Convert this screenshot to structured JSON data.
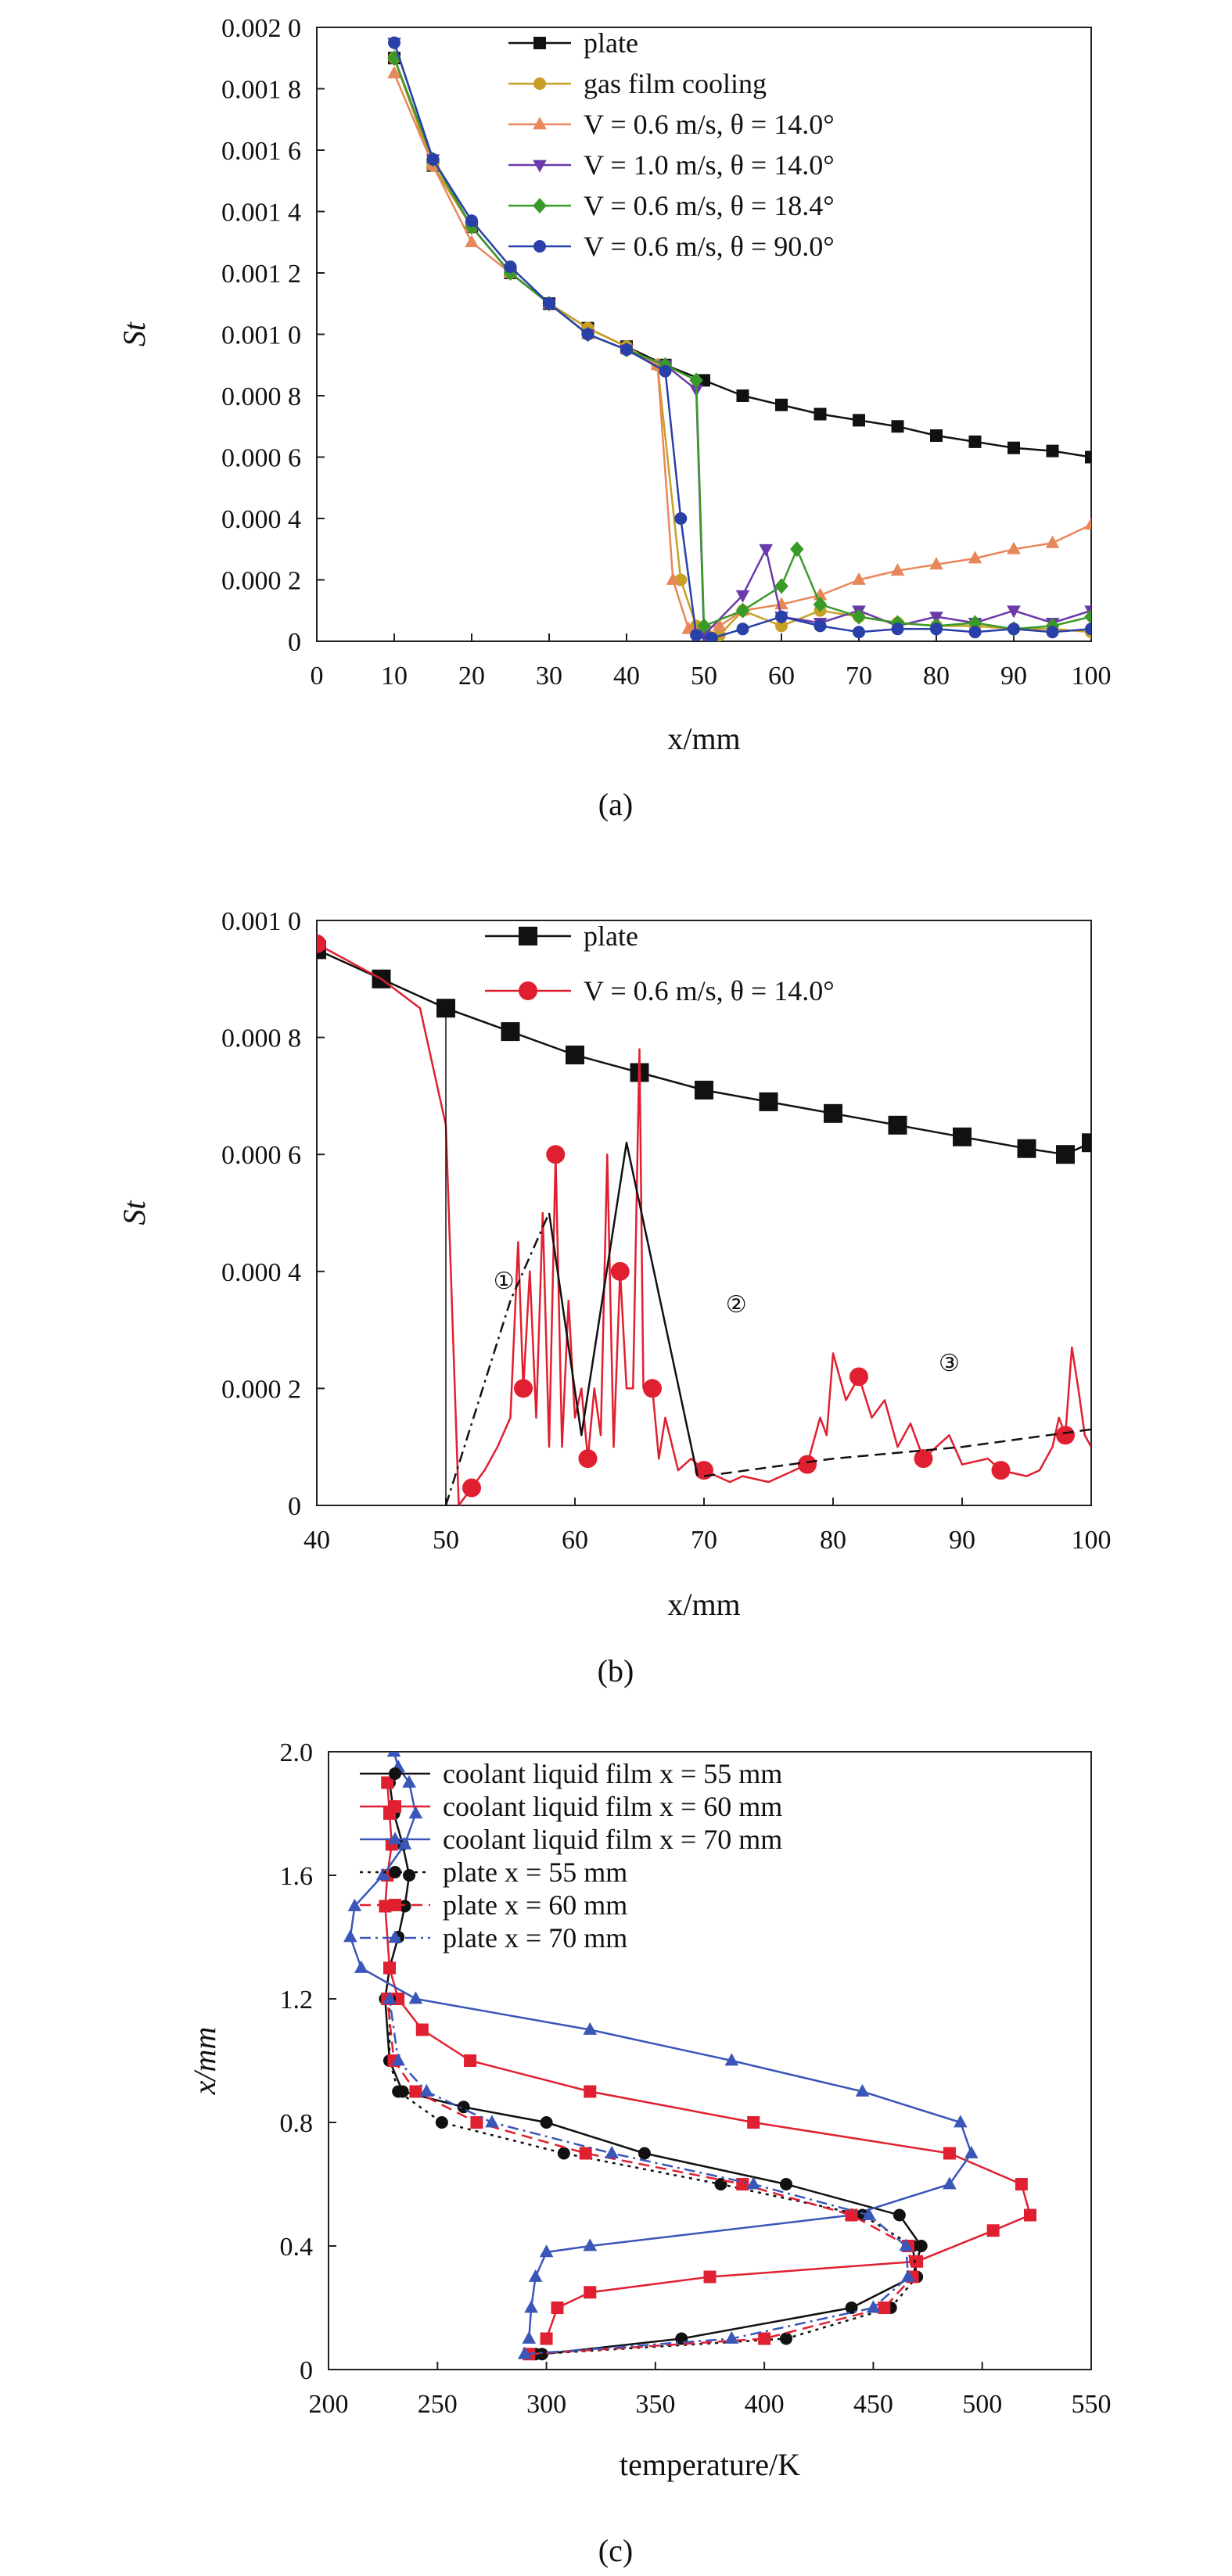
{
  "figure": {
    "panels": [
      {
        "id": "a",
        "label": "(a)"
      },
      {
        "id": "b",
        "label": "(b)"
      },
      {
        "id": "c",
        "label": "(c)"
      }
    ]
  },
  "colors": {
    "plate": "#111111",
    "gas_film": "#c8a028",
    "s_06_14": "#e8875a",
    "s_10_14": "#6a3aa8",
    "s_06_184": "#3a9a28",
    "s_06_90": "#2840a8",
    "red": "#e02030",
    "blue": "#3a56b8"
  },
  "chart_data": [
    {
      "panel": "a",
      "type": "line",
      "xlabel": "x/mm",
      "ylabel": "St",
      "xlim": [
        0,
        100
      ],
      "ylim": [
        0,
        0.002
      ],
      "xticks": [
        0,
        10,
        20,
        30,
        40,
        50,
        60,
        70,
        80,
        90,
        100
      ],
      "xtick_labels": [
        "0",
        "10",
        "20",
        "30",
        "40",
        "50",
        "60",
        "70",
        "80",
        "90",
        "100"
      ],
      "yticks": [
        0,
        0.0002,
        0.0004,
        0.0006,
        0.0008,
        0.001,
        0.0012,
        0.0014,
        0.0016,
        0.0018,
        0.002
      ],
      "ytick_labels": [
        "0",
        "0.000 2",
        "0.000 4",
        "0.000 6",
        "0.000 8",
        "0.001 0",
        "0.001 2",
        "0.001 4",
        "0.001 6",
        "0.001 8",
        "0.002 0"
      ],
      "legend": {
        "position": "top-right"
      },
      "series": [
        {
          "name": "plate",
          "color_key": "plate",
          "marker": "square",
          "x": [
            10,
            15,
            20,
            25,
            30,
            35,
            40,
            45,
            50,
            55,
            60,
            65,
            70,
            75,
            80,
            85,
            90,
            95,
            100
          ],
          "y": [
            0.0019,
            0.00155,
            0.00135,
            0.0012,
            0.0011,
            0.00102,
            0.00096,
            0.0009,
            0.00085,
            0.0008,
            0.00077,
            0.00074,
            0.00072,
            0.0007,
            0.00067,
            0.00065,
            0.00063,
            0.00062,
            0.0006
          ]
        },
        {
          "name": "gas film cooling",
          "color_key": "gas_film",
          "marker": "circle",
          "x": [
            10,
            15,
            20,
            25,
            30,
            35,
            40,
            44,
            47,
            49,
            52,
            55,
            60,
            65,
            70,
            75,
            80,
            85,
            90,
            95,
            100
          ],
          "y": [
            0.0019,
            0.00155,
            0.00135,
            0.0012,
            0.0011,
            0.00102,
            0.00096,
            0.0009,
            0.0002,
            5e-05,
            2e-05,
            0.0001,
            5e-05,
            0.0001,
            8e-05,
            6e-05,
            5e-05,
            5e-05,
            4e-05,
            4e-05,
            3e-05
          ]
        },
        {
          "name": "V = 0.6 m/s, θ = 14.0°",
          "color_key": "s_06_14",
          "marker": "triangle-up",
          "x": [
            10,
            15,
            20,
            25,
            30,
            35,
            40,
            44,
            46,
            48,
            52,
            55,
            60,
            65,
            70,
            75,
            80,
            85,
            90,
            95,
            100
          ],
          "y": [
            0.00185,
            0.00155,
            0.0013,
            0.0012,
            0.0011,
            0.001,
            0.00095,
            0.0009,
            0.0002,
            4e-05,
            5e-05,
            0.0001,
            0.00012,
            0.00015,
            0.0002,
            0.00023,
            0.00025,
            0.00027,
            0.0003,
            0.00032,
            0.00038
          ]
        },
        {
          "name": "V = 1.0 m/s, θ = 14.0°",
          "color_key": "s_10_14",
          "marker": "triangle-down",
          "x": [
            10,
            15,
            20,
            25,
            30,
            35,
            40,
            45,
            49,
            50,
            55,
            58,
            60,
            65,
            70,
            75,
            80,
            85,
            90,
            95,
            100
          ],
          "y": [
            0.00195,
            0.00157,
            0.00135,
            0.0012,
            0.0011,
            0.001,
            0.00095,
            0.0009,
            0.00082,
            2e-05,
            0.00015,
            0.0003,
            8e-05,
            6e-05,
            0.0001,
            5e-05,
            8e-05,
            6e-05,
            0.0001,
            6e-05,
            0.0001
          ]
        },
        {
          "name": "V = 0.6 m/s, θ = 18.4°",
          "color_key": "s_06_184",
          "marker": "diamond",
          "x": [
            10,
            15,
            20,
            25,
            30,
            35,
            40,
            45,
            49,
            50,
            55,
            60,
            62,
            65,
            70,
            75,
            80,
            85,
            90,
            95,
            100
          ],
          "y": [
            0.0019,
            0.00157,
            0.00135,
            0.0012,
            0.0011,
            0.001,
            0.00095,
            0.0009,
            0.00085,
            5e-05,
            0.0001,
            0.00018,
            0.0003,
            0.00012,
            8e-05,
            6e-05,
            5e-05,
            6e-05,
            4e-05,
            5e-05,
            8e-05
          ]
        },
        {
          "name": "V = 0.6 m/s, θ = 90.0°",
          "color_key": "s_06_90",
          "marker": "circle",
          "x": [
            10,
            15,
            20,
            25,
            30,
            35,
            40,
            45,
            47,
            49,
            51,
            55,
            60,
            65,
            70,
            75,
            80,
            85,
            90,
            95,
            100
          ],
          "y": [
            0.00195,
            0.00157,
            0.00137,
            0.00122,
            0.0011,
            0.001,
            0.00095,
            0.00088,
            0.0004,
            2e-05,
            1e-05,
            4e-05,
            8e-05,
            5e-05,
            3e-05,
            4e-05,
            4e-05,
            3e-05,
            4e-05,
            3e-05,
            4e-05
          ]
        }
      ]
    },
    {
      "panel": "b",
      "type": "line",
      "xlabel": "x/mm",
      "ylabel": "St",
      "xlim": [
        40,
        100
      ],
      "ylim": [
        0,
        0.001
      ],
      "xticks": [
        40,
        50,
        60,
        70,
        80,
        90,
        100
      ],
      "xtick_labels": [
        "40",
        "50",
        "60",
        "70",
        "80",
        "90",
        "100"
      ],
      "yticks": [
        0,
        0.0002,
        0.0004,
        0.0006,
        0.0008,
        0.001
      ],
      "ytick_labels": [
        "0",
        "0.000 2",
        "0.000 4",
        "0.000 6",
        "0.000 8",
        "0.001 0"
      ],
      "legend": {
        "position": "top-right"
      },
      "series": [
        {
          "name": "plate",
          "color_key": "plate",
          "marker": "square",
          "x": [
            40,
            45,
            50,
            55,
            60,
            65,
            70,
            75,
            80,
            85,
            90,
            95,
            98,
            100
          ],
          "y": [
            0.00095,
            0.0009,
            0.00085,
            0.00081,
            0.00077,
            0.00074,
            0.00071,
            0.00069,
            0.00067,
            0.00065,
            0.00063,
            0.00061,
            0.0006,
            0.00062
          ]
        },
        {
          "name": "V = 0.6 m/s, θ = 14.0°",
          "color_key": "red",
          "marker": "circle",
          "x": [
            40,
            45,
            48,
            50,
            51,
            52,
            53,
            54,
            55,
            55.6,
            56,
            56.5,
            57,
            57.5,
            58,
            58.5,
            59,
            59.5,
            60,
            60.5,
            61,
            61.5,
            62,
            62.5,
            63,
            63.5,
            64,
            64.5,
            65,
            65.3,
            66,
            66.5,
            67,
            68,
            69,
            70,
            72,
            73,
            75,
            77,
            78,
            79,
            79.5,
            80,
            81,
            82,
            83,
            84,
            85,
            86,
            87,
            88,
            89,
            90,
            92,
            93,
            95,
            96,
            97,
            97.5,
            98,
            98.5,
            99,
            99.5,
            100
          ],
          "y": [
            0.00096,
            0.0009,
            0.00085,
            0.00065,
            0.0,
            3e-05,
            6e-05,
            0.0001,
            0.00015,
            0.00045,
            0.0002,
            0.0004,
            0.00015,
            0.0005,
            0.0001,
            0.0006,
            0.0001,
            0.00035,
            0.00015,
            0.0002,
            8e-05,
            0.0002,
            0.00012,
            0.0006,
            0.0001,
            0.0004,
            0.0002,
            0.0002,
            0.00078,
            0.0002,
            0.0002,
            8e-05,
            0.00015,
            6e-05,
            8e-05,
            6e-05,
            4e-05,
            5e-05,
            4e-05,
            6e-05,
            7e-05,
            0.00015,
            0.00012,
            0.00026,
            0.00018,
            0.00022,
            0.00015,
            0.00018,
            0.0001,
            0.00014,
            8e-05,
            0.0001,
            0.00012,
            7e-05,
            8e-05,
            6e-05,
            5e-05,
            6e-05,
            0.0001,
            0.00015,
            0.00012,
            0.00027,
            0.0002,
            0.00012,
            0.0001
          ]
        },
        {
          "name": "",
          "color_key": "plate",
          "marker": "none",
          "style": "dashdot",
          "x": [
            50,
            55,
            58
          ],
          "y": [
            0.0,
            0.00035,
            0.0005
          ]
        },
        {
          "name": "",
          "color_key": "plate",
          "marker": "none",
          "style": "solid",
          "x": [
            58,
            60.5,
            64,
            69.5
          ],
          "y": [
            0.0005,
            0.00012,
            0.00062,
            5e-05
          ]
        },
        {
          "name": "",
          "color_key": "plate",
          "marker": "none",
          "style": "dashed",
          "x": [
            70,
            80,
            90,
            100
          ],
          "y": [
            5e-05,
            8e-05,
            0.0001,
            0.00013
          ]
        },
        {
          "name": "",
          "color_key": "plate",
          "marker": "none",
          "style": "solid-thin",
          "x": [
            50,
            50
          ],
          "y": [
            0.00085,
            0.0
          ]
        }
      ],
      "annotations": [
        {
          "text": "①",
          "x": 54.5,
          "y": 0.00037
        },
        {
          "text": "②",
          "x": 72.5,
          "y": 0.00033
        },
        {
          "text": "③",
          "x": 89,
          "y": 0.00023
        }
      ]
    },
    {
      "panel": "c",
      "type": "line",
      "xlabel": "temperature/K",
      "ylabel": "x/mm",
      "xlim": [
        200,
        550
      ],
      "ylim": [
        0,
        2.0
      ],
      "xticks": [
        200,
        250,
        300,
        350,
        400,
        450,
        500,
        550
      ],
      "xtick_labels": [
        "200",
        "250",
        "300",
        "350",
        "400",
        "450",
        "500",
        "550"
      ],
      "yticks": [
        0,
        0.4,
        0.8,
        1.2,
        1.6,
        2.0
      ],
      "ytick_labels": [
        "0",
        "0.4",
        "0.8",
        "1.2",
        "1.6",
        "2.0"
      ],
      "legend": {
        "position": "top-right"
      },
      "series": [
        {
          "name": "coolant liquid film x = 55 mm",
          "color_key": "plate",
          "marker": "circle",
          "style": "solid",
          "x": [
            298,
            362,
            440,
            468,
            472,
            462,
            410,
            345,
            300,
            262,
            234,
            228,
            226,
            228,
            232,
            235,
            237,
            234,
            230,
            228
          ],
          "y": [
            0.05,
            0.1,
            0.2,
            0.3,
            0.4,
            0.5,
            0.6,
            0.7,
            0.8,
            0.85,
            0.9,
            1.0,
            1.2,
            1.3,
            1.4,
            1.5,
            1.6,
            1.7,
            1.8,
            1.9
          ]
        },
        {
          "name": "coolant liquid film x = 60 mm",
          "color_key": "red",
          "marker": "square",
          "style": "solid",
          "x": [
            300,
            305,
            320,
            375,
            470,
            505,
            522,
            518,
            485,
            395,
            320,
            265,
            243,
            232,
            228,
            226,
            227,
            229,
            228,
            227
          ],
          "y": [
            0.1,
            0.2,
            0.25,
            0.3,
            0.35,
            0.45,
            0.5,
            0.6,
            0.7,
            0.8,
            0.9,
            1.0,
            1.1,
            1.2,
            1.3,
            1.5,
            1.6,
            1.7,
            1.8,
            1.9
          ]
        },
        {
          "name": "coolant liquid film x = 70 mm",
          "color_key": "blue",
          "marker": "triangle-up",
          "style": "solid",
          "x": [
            292,
            293,
            295,
            300,
            320,
            440,
            485,
            495,
            490,
            445,
            385,
            320,
            240,
            215,
            210,
            212,
            225,
            235,
            240,
            237,
            232,
            230
          ],
          "y": [
            0.1,
            0.2,
            0.3,
            0.38,
            0.4,
            0.5,
            0.6,
            0.7,
            0.8,
            0.9,
            1.0,
            1.1,
            1.2,
            1.3,
            1.4,
            1.5,
            1.6,
            1.7,
            1.8,
            1.9,
            1.95,
            2.0
          ]
        },
        {
          "name": "plate x = 55 mm",
          "color_key": "plate",
          "marker": "circle",
          "style": "dotted",
          "x": [
            295,
            410,
            458,
            470,
            468,
            445,
            380,
            308,
            252,
            232,
            228,
            228
          ],
          "y": [
            0.05,
            0.1,
            0.2,
            0.3,
            0.4,
            0.5,
            0.6,
            0.7,
            0.8,
            0.9,
            1.0,
            1.2
          ]
        },
        {
          "name": "plate x = 60 mm",
          "color_key": "red",
          "marker": "square",
          "style": "dashed",
          "x": [
            292,
            400,
            455,
            468,
            466,
            440,
            390,
            318,
            268,
            240,
            230,
            227
          ],
          "y": [
            0.05,
            0.1,
            0.2,
            0.3,
            0.4,
            0.5,
            0.6,
            0.7,
            0.8,
            0.9,
            1.0,
            1.2
          ]
        },
        {
          "name": "plate x = 70 mm",
          "color_key": "blue",
          "marker": "triangle-up",
          "style": "dashdot",
          "x": [
            290,
            385,
            450,
            466,
            465,
            448,
            395,
            330,
            275,
            245,
            232,
            228
          ],
          "y": [
            0.05,
            0.1,
            0.2,
            0.3,
            0.4,
            0.5,
            0.6,
            0.7,
            0.8,
            0.9,
            1.0,
            1.2
          ]
        }
      ]
    }
  ]
}
